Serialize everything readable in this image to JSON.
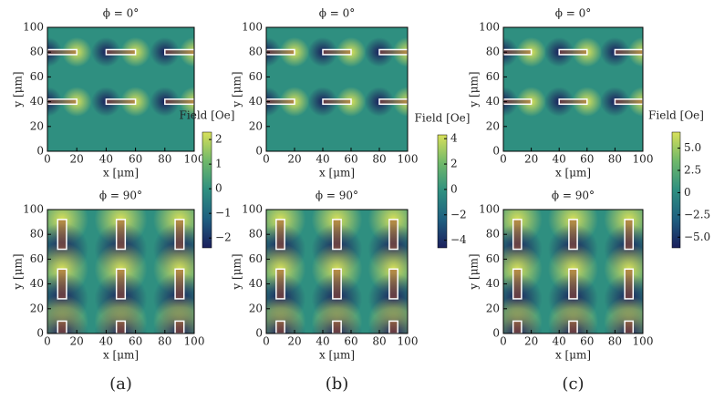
{
  "chart_data": [
    {
      "type": "heatmap",
      "title": "ϕ = 0°",
      "xlabel": "x [μm]",
      "ylabel": "y [μm]",
      "xlim": [
        0,
        100
      ],
      "ylim": [
        0,
        100
      ],
      "xticks": [
        0,
        20,
        40,
        60,
        80,
        100
      ],
      "yticks": [
        0,
        20,
        40,
        60,
        80,
        100
      ],
      "magnets": [
        [
          0,
          20,
          78,
          82
        ],
        [
          40,
          60,
          78,
          82
        ],
        [
          80,
          100,
          78,
          82
        ],
        [
          0,
          20,
          38,
          42
        ],
        [
          40,
          60,
          38,
          42
        ],
        [
          80,
          100,
          38,
          42
        ]
      ]
    },
    {
      "type": "heatmap",
      "title": "ϕ = 0°",
      "xlabel": "x [μm]",
      "ylabel": "y [μm]",
      "xlim": [
        0,
        100
      ],
      "ylim": [
        0,
        100
      ],
      "xticks": [
        0,
        20,
        40,
        60,
        80,
        100
      ],
      "yticks": [
        0,
        20,
        40,
        60,
        80,
        100
      ],
      "magnets": [
        [
          0,
          20,
          78,
          82
        ],
        [
          40,
          60,
          78,
          82
        ],
        [
          80,
          100,
          78,
          82
        ],
        [
          0,
          20,
          38,
          42
        ],
        [
          40,
          60,
          38,
          42
        ],
        [
          80,
          100,
          38,
          42
        ]
      ]
    },
    {
      "type": "heatmap",
      "title": "ϕ = 0°",
      "xlabel": "x [μm]",
      "ylabel": "y [μm]",
      "xlim": [
        0,
        100
      ],
      "ylim": [
        0,
        100
      ],
      "xticks": [
        0,
        20,
        40,
        60,
        80,
        100
      ],
      "yticks": [
        0,
        20,
        40,
        60,
        80,
        100
      ],
      "magnets": [
        [
          0,
          20,
          78,
          82
        ],
        [
          40,
          60,
          78,
          82
        ],
        [
          80,
          100,
          78,
          82
        ],
        [
          0,
          20,
          38,
          42
        ],
        [
          40,
          60,
          38,
          42
        ],
        [
          80,
          100,
          38,
          42
        ]
      ]
    },
    {
      "type": "heatmap",
      "title": "ϕ = 90°",
      "xlabel": "x [μm]",
      "ylabel": "y [μm]",
      "xlim": [
        0,
        100
      ],
      "ylim": [
        0,
        100
      ],
      "xticks": [
        0,
        20,
        40,
        60,
        80,
        100
      ],
      "yticks": [
        0,
        20,
        40,
        60,
        80,
        100
      ],
      "magnets": [
        [
          7,
          13,
          68,
          92
        ],
        [
          47,
          53,
          68,
          92
        ],
        [
          87,
          93,
          68,
          92
        ],
        [
          7,
          13,
          28,
          52
        ],
        [
          47,
          53,
          28,
          52
        ],
        [
          87,
          93,
          28,
          52
        ],
        [
          7,
          13,
          0,
          10
        ],
        [
          47,
          53,
          0,
          10
        ],
        [
          87,
          93,
          0,
          10
        ]
      ]
    },
    {
      "type": "heatmap",
      "title": "ϕ = 90°",
      "xlabel": "x [μm]",
      "ylabel": "y [μm]",
      "xlim": [
        0,
        100
      ],
      "ylim": [
        0,
        100
      ],
      "xticks": [
        0,
        20,
        40,
        60,
        80,
        100
      ],
      "yticks": [
        0,
        20,
        40,
        60,
        80,
        100
      ],
      "magnets": [
        [
          7,
          13,
          68,
          92
        ],
        [
          47,
          53,
          68,
          92
        ],
        [
          87,
          93,
          68,
          92
        ],
        [
          7,
          13,
          28,
          52
        ],
        [
          47,
          53,
          28,
          52
        ],
        [
          87,
          93,
          28,
          52
        ],
        [
          7,
          13,
          0,
          10
        ],
        [
          47,
          53,
          0,
          10
        ],
        [
          87,
          93,
          0,
          10
        ]
      ]
    },
    {
      "type": "heatmap",
      "title": "ϕ = 90°",
      "xlabel": "x [μm]",
      "ylabel": "y [μm]",
      "xlim": [
        0,
        100
      ],
      "ylim": [
        0,
        100
      ],
      "xticks": [
        0,
        20,
        40,
        60,
        80,
        100
      ],
      "yticks": [
        0,
        20,
        40,
        60,
        80,
        100
      ],
      "magnets": [
        [
          7,
          13,
          68,
          92
        ],
        [
          47,
          53,
          68,
          92
        ],
        [
          87,
          93,
          68,
          92
        ],
        [
          7,
          13,
          28,
          52
        ],
        [
          47,
          53,
          28,
          52
        ],
        [
          87,
          93,
          28,
          52
        ],
        [
          7,
          13,
          0,
          10
        ],
        [
          47,
          53,
          0,
          10
        ],
        [
          87,
          93,
          0,
          10
        ]
      ]
    }
  ],
  "colorbars": [
    {
      "label": "Field [Oe]",
      "lim": [
        -2.4,
        2.3
      ],
      "ticks": [
        2,
        1,
        0,
        {
          "value": -1,
          "label": "−1"
        },
        {
          "value": -2,
          "label": "−2"
        }
      ],
      "colors": [
        "#1b1f5c",
        "#1f5f80",
        "#2f8f80",
        "#6fb86a",
        "#d8e05a"
      ]
    },
    {
      "label": "Field [Oe]",
      "lim": [
        -4.6,
        4.3
      ],
      "ticks": [
        4,
        2,
        0,
        {
          "value": -2,
          "label": "−2"
        },
        {
          "value": -4,
          "label": "−4"
        }
      ],
      "colors": [
        "#1b1f5c",
        "#1f5f80",
        "#2f8f80",
        "#6fb86a",
        "#d8e05a"
      ]
    },
    {
      "label": "Field [Oe]",
      "lim": [
        -6.2,
        6.8
      ],
      "ticks": [
        {
          "value": 5,
          "label": "5.0"
        },
        {
          "value": 2.5,
          "label": "2.5"
        },
        0,
        {
          "value": -2.5,
          "label": "−2.5"
        },
        {
          "value": -5,
          "label": "−5.0"
        }
      ],
      "colors": [
        "#1b1f5c",
        "#1f5f80",
        "#2f8f80",
        "#6fb86a",
        "#d8e05a"
      ]
    }
  ],
  "panel_labels": [
    "(a)",
    "(b)",
    "(c)"
  ]
}
